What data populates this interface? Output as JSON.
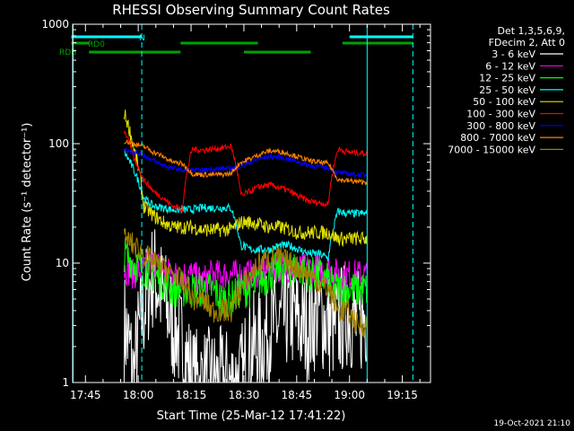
{
  "chart_data": {
    "type": "line",
    "title": "RHESSI Observing Summary Count Rates",
    "xlabel": "Start Time (25-Mar-12 17:41:22)",
    "ylabel": "Count Rate (s⁻¹ detector⁻¹)",
    "yscale": "log",
    "ylim": [
      1,
      1000
    ],
    "xlim": [
      "17:41",
      "19:23"
    ],
    "y_ticks": [
      "1",
      "10",
      "100",
      "1000"
    ],
    "x_ticks": [
      "17:45",
      "18:00",
      "18:15",
      "18:30",
      "18:45",
      "19:00",
      "19:15"
    ],
    "legend_header": [
      "Det 1,3,5,6,9,",
      "FDecim 2, Att 0"
    ],
    "legend_placement": "right",
    "footer_date": "19-Oct-2021 21:10",
    "flags": {
      "N": {
        "label": "N",
        "color": "#00ffff",
        "segments": [
          [
            "17:41",
            "18:01"
          ],
          [
            "19:00",
            "19:18"
          ]
        ]
      },
      "RD0": {
        "label": "RD0",
        "color": "#00a000",
        "segments": [
          [
            "17:41",
            "17:46"
          ],
          [
            "18:12",
            "18:34"
          ],
          [
            "18:58",
            "19:18"
          ]
        ]
      },
      "RDB": {
        "label": "RDB",
        "color": "#00a000",
        "segments": [
          [
            "17:46",
            "18:12"
          ],
          [
            "18:30",
            "18:49"
          ]
        ]
      }
    },
    "vlines_solid": [
      "17:41",
      "19:05"
    ],
    "vlines_dashed": [
      "18:01",
      "19:18"
    ],
    "series": [
      {
        "name": "3 - 6 keV",
        "color": "#ffffff",
        "ref": [
          3,
          1,
          4,
          8,
          5,
          3,
          2,
          1,
          1,
          1,
          1,
          1,
          1,
          2,
          2,
          3,
          3,
          4,
          3,
          3,
          4,
          3,
          3,
          4,
          3,
          4
        ],
        "noise": 0.55,
        "floor": 1
      },
      {
        "name": "6 - 12 keV",
        "color": "#ff00ff",
        "ref": [
          9,
          8,
          9,
          10,
          9,
          8,
          8,
          8,
          7,
          8,
          8,
          8,
          8,
          8,
          8,
          9,
          9,
          9,
          9,
          9,
          9,
          9,
          8,
          8,
          8,
          8
        ],
        "noise": 0.15
      },
      {
        "name": "12 - 25 keV",
        "color": "#00ff00",
        "ref": [
          12,
          10,
          9,
          8,
          7,
          6,
          6,
          6,
          6,
          6,
          5,
          5,
          6,
          6,
          7,
          8,
          9,
          9,
          9,
          8,
          8,
          7,
          6,
          6,
          6,
          6
        ],
        "noise": 0.18
      },
      {
        "name": "25 - 50 keV",
        "color": "#00ffff",
        "ref": [
          85,
          60,
          35,
          30,
          29,
          28,
          28,
          28,
          29,
          29,
          29,
          29,
          14,
          13,
          13,
          13,
          14,
          14,
          13,
          12,
          12,
          11,
          27,
          26,
          26,
          26
        ],
        "noise": 0.04
      },
      {
        "name": "50 - 100 keV",
        "color": "#e0e000",
        "ref": [
          180,
          90,
          30,
          25,
          22,
          20,
          20,
          20,
          19,
          19,
          19,
          19,
          22,
          22,
          21,
          20,
          20,
          19,
          18,
          18,
          18,
          18,
          16,
          16,
          16,
          16
        ],
        "noise": 0.07
      },
      {
        "name": "100 - 300 keV",
        "color": "#ff0000",
        "ref": [
          130,
          75,
          50,
          40,
          35,
          30,
          28,
          90,
          88,
          90,
          92,
          95,
          37,
          40,
          44,
          45,
          43,
          40,
          36,
          33,
          32,
          31,
          90,
          85,
          84,
          83
        ],
        "noise": 0.03
      },
      {
        "name": "300 - 800 keV",
        "color": "#0000ff",
        "ref": [
          90,
          85,
          80,
          72,
          66,
          62,
          60,
          60,
          60,
          61,
          62,
          62,
          65,
          70,
          75,
          78,
          77,
          74,
          70,
          66,
          64,
          63,
          57,
          56,
          55,
          55
        ],
        "noise": 0.025
      },
      {
        "name": "800 - 7000 keV",
        "color": "#ff8000",
        "ref": [
          105,
          100,
          95,
          85,
          78,
          70,
          68,
          56,
          55,
          55,
          55,
          56,
          70,
          75,
          82,
          87,
          86,
          82,
          77,
          72,
          70,
          68,
          50,
          49,
          48,
          48
        ],
        "noise": 0.025
      },
      {
        "name": "7000 - 15000 keV",
        "color": "#a08000",
        "ref": [
          16,
          14,
          12,
          10,
          9,
          8,
          7,
          5,
          5,
          4,
          4,
          4,
          6,
          8,
          10,
          11,
          11,
          10,
          9,
          8,
          7,
          6,
          4,
          4,
          3,
          3
        ],
        "noise": 0.12
      }
    ],
    "time_range": [
      "17:56",
      "19:05"
    ],
    "jump_times": [
      "18:11",
      "18:30",
      "18:49"
    ]
  }
}
